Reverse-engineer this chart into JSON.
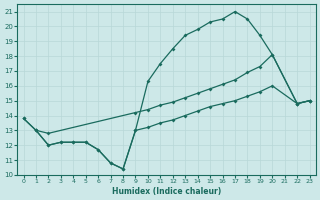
{
  "xlabel": "Humidex (Indice chaleur)",
  "xlim": [
    -0.5,
    23.5
  ],
  "ylim": [
    10,
    21.5
  ],
  "yticks": [
    10,
    11,
    12,
    13,
    14,
    15,
    16,
    17,
    18,
    19,
    20,
    21
  ],
  "xticks": [
    0,
    1,
    2,
    3,
    4,
    5,
    6,
    7,
    8,
    9,
    10,
    11,
    12,
    13,
    14,
    15,
    16,
    17,
    18,
    19,
    20,
    21,
    22,
    23
  ],
  "bg_color": "#cde8e8",
  "line_color": "#1a6b5e",
  "grid_color": "#b8d8d8",
  "line1_x": [
    0,
    1,
    2,
    3,
    4,
    5,
    6,
    7,
    8,
    9,
    10,
    11,
    12,
    13,
    14,
    15,
    16,
    17,
    18,
    19,
    20,
    22,
    23
  ],
  "line1_y": [
    13.8,
    13.0,
    12.0,
    12.2,
    12.2,
    12.2,
    11.7,
    10.8,
    10.4,
    13.0,
    16.3,
    17.5,
    18.5,
    19.4,
    19.8,
    20.3,
    20.5,
    21.0,
    20.5,
    19.4,
    18.1,
    14.8,
    15.0
  ],
  "line2_x": [
    0,
    1,
    2,
    9,
    10,
    11,
    12,
    13,
    14,
    15,
    16,
    17,
    18,
    19,
    20,
    22,
    23
  ],
  "line2_y": [
    13.8,
    13.0,
    12.8,
    14.2,
    14.4,
    14.7,
    14.9,
    15.2,
    15.5,
    15.8,
    16.1,
    16.4,
    16.9,
    17.3,
    18.1,
    14.8,
    15.0
  ],
  "line3_x": [
    1,
    2,
    3,
    4,
    5,
    6,
    7,
    8,
    9,
    10,
    11,
    12,
    13,
    14,
    15,
    16,
    17,
    18,
    19,
    20,
    22,
    23
  ],
  "line3_y": [
    13.0,
    12.0,
    12.2,
    12.2,
    12.2,
    11.7,
    10.8,
    10.4,
    13.0,
    13.2,
    13.5,
    13.7,
    14.0,
    14.3,
    14.6,
    14.8,
    15.0,
    15.3,
    15.6,
    16.0,
    14.8,
    15.0
  ]
}
